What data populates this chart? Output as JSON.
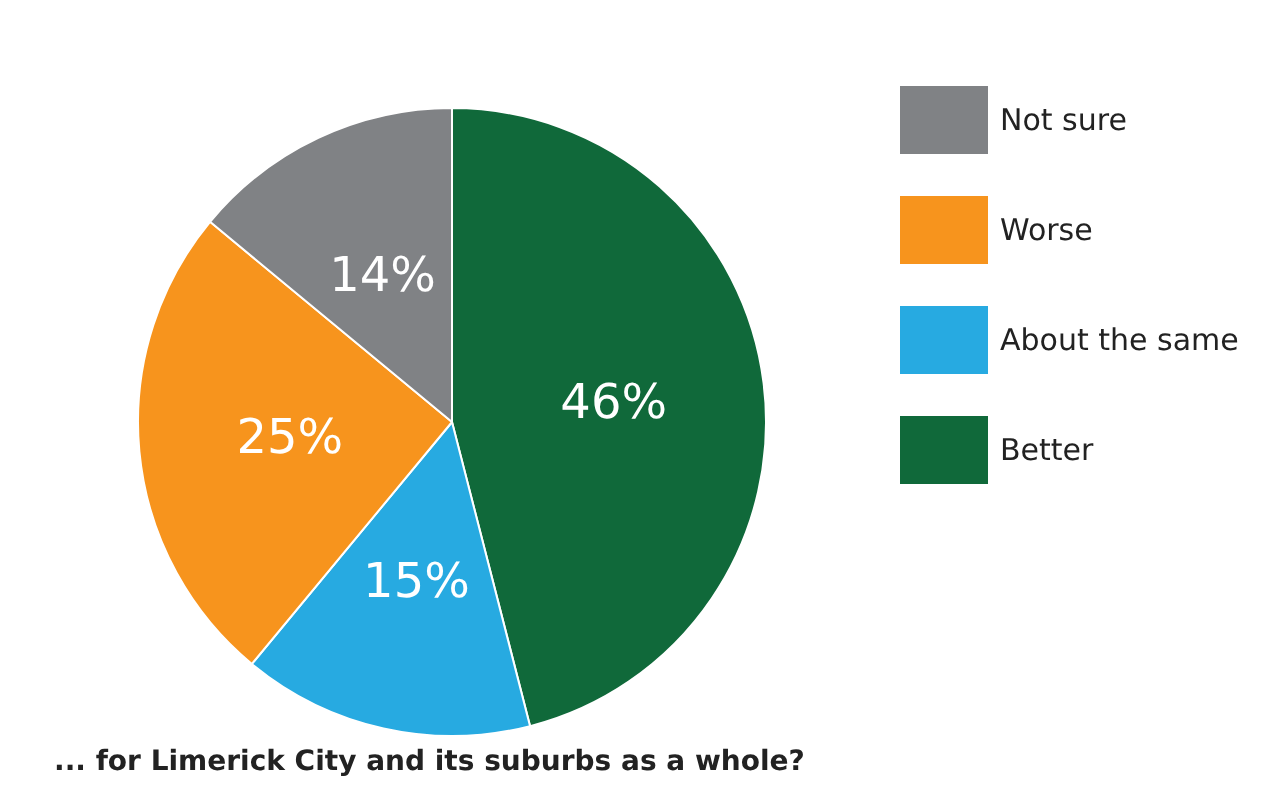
{
  "chart_data": {
    "type": "pie",
    "title": "... for Limerick City and its suburbs as a whole?",
    "categories": [
      "Better",
      "About the same",
      "Worse",
      "Not sure"
    ],
    "values": [
      46,
      15,
      25,
      14
    ],
    "colors": [
      "#10693a",
      "#27aae1",
      "#f7941d",
      "#808285"
    ],
    "value_labels": [
      "46%",
      "15%",
      "25%",
      "14%"
    ],
    "legend": "right"
  }
}
